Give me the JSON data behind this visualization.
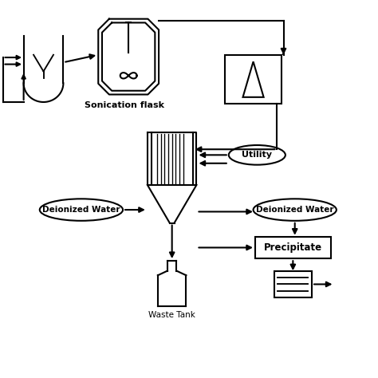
{
  "background": "#ffffff",
  "line_color": "#000000",
  "lw": 1.5,
  "labels": {
    "sonication_flask": "Sonication flask",
    "utility": "Utility",
    "deionized_water_left": "Deionized Water",
    "deionized_water_right": "Deionized Water",
    "precipitate": "Precipitate",
    "waste_tank": "Waste Tank"
  },
  "xlim": [
    0,
    10
  ],
  "ylim": [
    0,
    10
  ]
}
